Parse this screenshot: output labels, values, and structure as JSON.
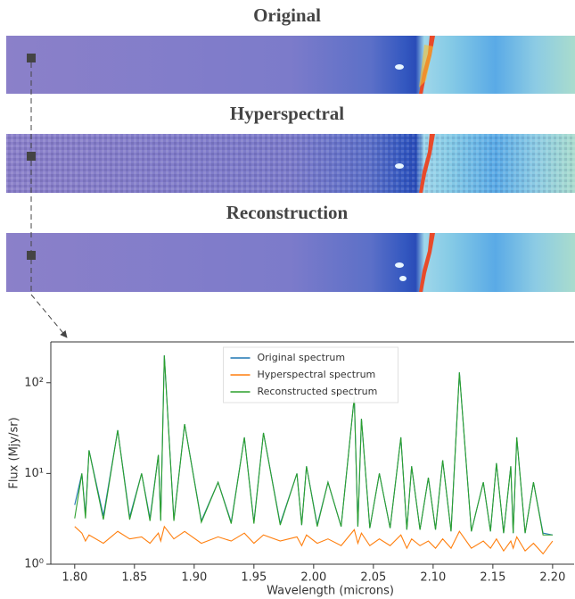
{
  "panels": [
    {
      "title": "Original"
    },
    {
      "title": "Hyperspectral"
    },
    {
      "title": "Reconstruction"
    }
  ],
  "chart_data": {
    "type": "line",
    "xlabel": "Wavelength (microns)",
    "ylabel": "Flux (Mjy/sr)",
    "log_y": true,
    "legend": "upper center",
    "xlim": [
      1.78,
      2.218
    ],
    "ylim": [
      1,
      282
    ],
    "xticks": [
      {
        "value": 1.8,
        "label": "1.80"
      },
      1.85,
      {
        "value": 1.9,
        "label": "1.90"
      },
      1.95,
      {
        "value": 2.0,
        "label": "2.00"
      },
      2.05,
      {
        "value": 2.1,
        "label": "2.10"
      },
      2.15,
      {
        "value": 2.2,
        "label": "2.20"
      }
    ],
    "yticks": [
      {
        "value": 1,
        "label": "10⁰"
      },
      {
        "value": 10,
        "label": "10¹"
      },
      {
        "value": 100,
        "label": "10²"
      }
    ],
    "x": [
      1.8,
      1.806,
      1.809,
      1.812,
      1.824,
      1.836,
      1.846,
      1.856,
      1.863,
      1.87,
      1.872,
      1.875,
      1.883,
      1.892,
      1.906,
      1.92,
      1.931,
      1.942,
      1.95,
      1.958,
      1.972,
      1.986,
      1.99,
      1.994,
      2.003,
      2.012,
      2.023,
      2.034,
      2.037,
      2.04,
      2.047,
      2.055,
      2.064,
      2.073,
      2.078,
      2.082,
      2.089,
      2.096,
      2.102,
      2.108,
      2.115,
      2.122,
      2.132,
      2.142,
      2.148,
      2.153,
      2.159,
      2.165,
      2.167,
      2.17,
      2.177,
      2.184,
      2.192,
      2.2
    ],
    "series": [
      {
        "name": "Original spectrum",
        "color": "#1f77b4",
        "values": [
          4.5,
          10,
          3.5,
          18,
          3.4,
          30,
          3.3,
          10,
          3.2,
          16,
          3.1,
          200,
          3.1,
          35,
          3.0,
          8,
          2.9,
          25,
          2.9,
          28,
          2.8,
          10,
          2.7,
          12,
          2.7,
          8,
          2.6,
          70,
          2.6,
          40,
          2.5,
          10,
          2.5,
          25,
          2.4,
          12,
          2.4,
          9,
          2.4,
          14,
          2.3,
          130,
          2.3,
          8,
          2.3,
          13,
          2.2,
          12,
          2.2,
          25,
          2.2,
          8,
          2.2,
          2.1
        ]
      },
      {
        "name": "Hyperspectral spectrum",
        "color": "#ff7f0e",
        "values": [
          2.6,
          2.2,
          1.8,
          2.1,
          1.7,
          2.3,
          1.9,
          2.0,
          1.7,
          2.2,
          1.8,
          2.6,
          1.9,
          2.3,
          1.7,
          2.0,
          1.8,
          2.2,
          1.7,
          2.1,
          1.8,
          2.0,
          1.6,
          2.1,
          1.7,
          1.9,
          1.6,
          2.4,
          1.7,
          2.2,
          1.6,
          1.9,
          1.6,
          2.1,
          1.5,
          1.9,
          1.6,
          1.8,
          1.5,
          1.9,
          1.5,
          2.3,
          1.5,
          1.8,
          1.5,
          1.9,
          1.4,
          1.8,
          1.5,
          2.0,
          1.4,
          1.7,
          1.3,
          1.8
        ]
      },
      {
        "name": "Reconstructed spectrum",
        "color": "#2ca02c",
        "values": [
          3.2,
          10,
          3.2,
          18,
          3.1,
          30,
          3.1,
          10,
          3.0,
          16,
          3.0,
          200,
          3.0,
          35,
          2.9,
          8,
          2.8,
          25,
          2.8,
          28,
          2.7,
          10,
          2.7,
          12,
          2.6,
          8,
          2.6,
          70,
          2.6,
          40,
          2.5,
          10,
          2.5,
          25,
          2.4,
          12,
          2.4,
          9,
          2.4,
          14,
          2.3,
          130,
          2.3,
          8,
          2.3,
          13,
          2.2,
          12,
          2.2,
          25,
          2.2,
          8,
          2.1,
          2.1
        ]
      }
    ]
  }
}
